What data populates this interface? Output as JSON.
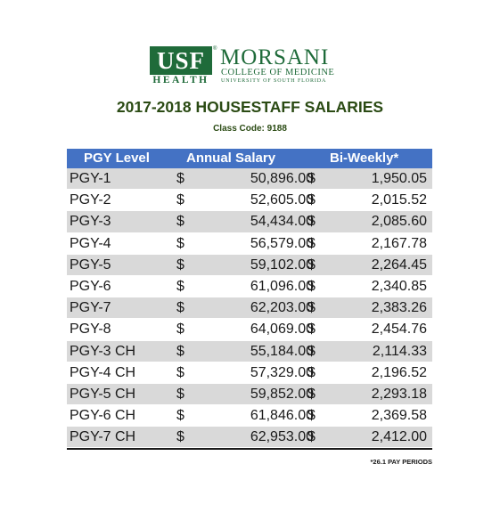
{
  "logo": {
    "usf": "USF",
    "health": "HEALTH",
    "registered": "®",
    "morsani": "MORSANI",
    "college": "COLLEGE OF MEDICINE",
    "university": "UNIVERSITY OF SOUTH FLORIDA"
  },
  "title": "2017-2018 HOUSESTAFF SALARIES",
  "class_code": "Class Code: 9188",
  "table": {
    "headers": [
      "PGY Level",
      "Annual Salary",
      "Bi-Weekly*"
    ],
    "currency": "$",
    "rows": [
      {
        "level": "PGY-1",
        "annual": "50,896.00",
        "biweekly": "1,950.05"
      },
      {
        "level": "PGY-2",
        "annual": "52,605.00",
        "biweekly": "2,015.52"
      },
      {
        "level": "PGY-3",
        "annual": "54,434.00",
        "biweekly": "2,085.60"
      },
      {
        "level": "PGY-4",
        "annual": "56,579.00",
        "biweekly": "2,167.78"
      },
      {
        "level": "PGY-5",
        "annual": "59,102.00",
        "biweekly": "2,264.45"
      },
      {
        "level": "PGY-6",
        "annual": "61,096.00",
        "biweekly": "2,340.85"
      },
      {
        "level": "PGY-7",
        "annual": "62,203.00",
        "biweekly": "2,383.26"
      },
      {
        "level": "PGY-8",
        "annual": "64,069.00",
        "biweekly": "2,454.76"
      },
      {
        "level": "PGY-3 CH",
        "annual": "55,184.00",
        "biweekly": "2,114.33"
      },
      {
        "level": "PGY-4 CH",
        "annual": "57,329.00",
        "biweekly": "2,196.52"
      },
      {
        "level": "PGY-5 CH",
        "annual": "59,852.00",
        "biweekly": "2,293.18"
      },
      {
        "level": "PGY-6 CH",
        "annual": "61,846.00",
        "biweekly": "2,369.58"
      },
      {
        "level": "PGY-7 CH",
        "annual": "62,953.00",
        "biweekly": "2,412.00"
      }
    ]
  },
  "footnote": "*26.1 PAY PERIODS",
  "colors": {
    "brand_green": "#1f6b3a",
    "title_green": "#2b4b14",
    "header_blue": "#4472c4",
    "row_shade": "#d9d9d9"
  }
}
